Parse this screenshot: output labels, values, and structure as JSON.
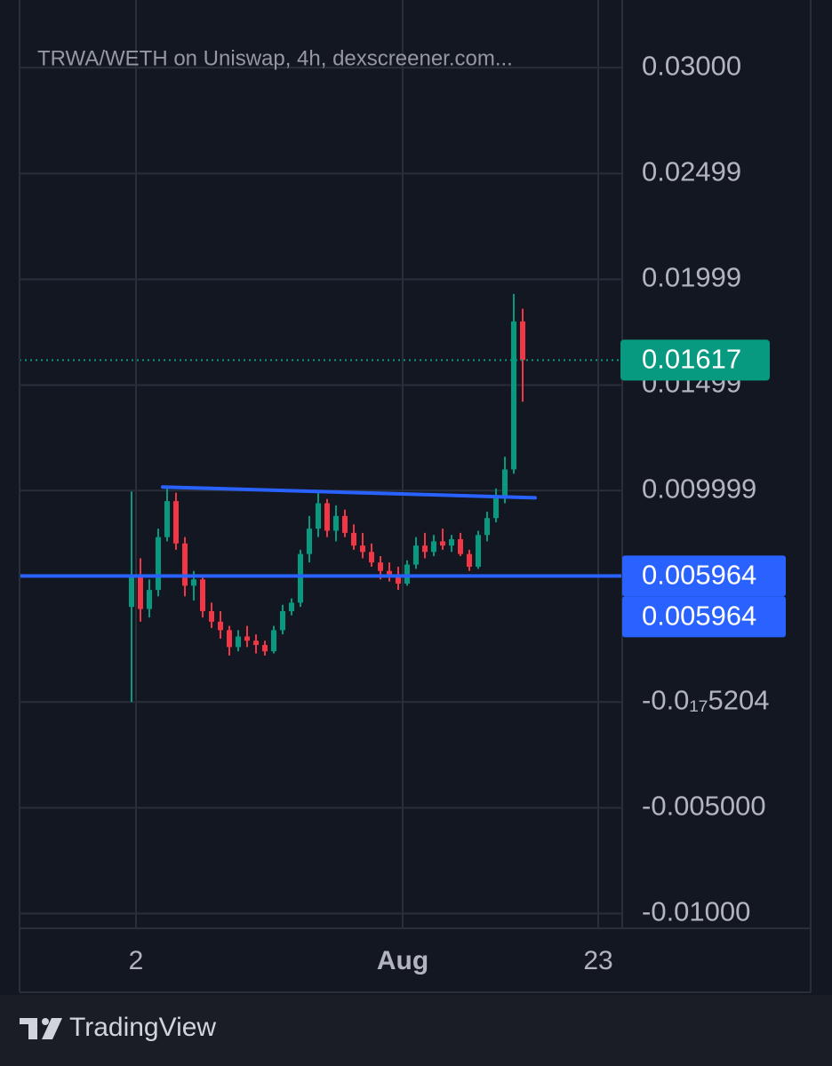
{
  "chart_data": {
    "type": "candlestick",
    "title": "TRWA/WETH on Uniswap, 4h, dexscreener.com...",
    "brand": "TradingView",
    "categories": [
      null,
      null,
      null,
      null,
      null,
      null,
      null,
      null,
      null,
      null,
      null,
      null,
      null,
      null,
      null,
      null,
      null,
      null,
      null,
      null,
      null,
      null,
      null,
      null,
      null,
      null,
      null,
      null,
      null,
      null,
      null,
      null,
      null,
      null,
      null,
      null,
      null,
      null,
      null,
      null,
      null,
      null,
      null,
      null,
      null
    ],
    "open": [
      0.0045,
      0.006,
      0.0044,
      0.0053,
      0.0078,
      0.0095,
      0.0075,
      0.0055,
      0.0058,
      0.0043,
      0.0038,
      0.0034,
      0.0026,
      0.0031,
      0.0029,
      0.0027,
      0.0024,
      0.0034,
      0.0043,
      0.0047,
      0.007,
      0.0082,
      0.0094,
      0.0081,
      0.0088,
      0.008,
      0.0074,
      0.0071,
      0.0066,
      0.0062,
      0.0059,
      0.0056,
      0.0065,
      0.0074,
      0.0071,
      0.0076,
      0.0074,
      0.0077,
      0.007,
      0.0064,
      0.0079,
      0.0087,
      0.0097,
      0.011,
      0.018
    ],
    "high": [
      0.00996,
      0.0068,
      0.0058,
      0.0082,
      0.0101,
      0.0099,
      0.0078,
      0.0062,
      0.006,
      0.0047,
      0.0043,
      0.0036,
      0.0034,
      0.0036,
      0.0032,
      0.0029,
      0.0036,
      0.0046,
      0.0049,
      0.0072,
      0.0088,
      0.0099,
      0.0096,
      0.0093,
      0.0091,
      0.0084,
      0.008,
      0.0075,
      0.0069,
      0.0066,
      0.0064,
      0.0067,
      0.0078,
      0.008,
      0.0079,
      0.0082,
      0.0079,
      0.008,
      0.0072,
      0.0081,
      0.009,
      0.0101,
      0.0116,
      0.0193,
      0.0186
    ],
    "low": [
      0.0,
      0.0038,
      0.004,
      0.005,
      0.0076,
      0.0072,
      0.005,
      0.0048,
      0.004,
      0.0035,
      0.003,
      0.0022,
      0.0024,
      0.0026,
      0.0023,
      0.0022,
      0.0023,
      0.0032,
      0.0041,
      0.0045,
      0.0066,
      0.0078,
      0.0078,
      0.0076,
      0.0078,
      0.0072,
      0.0068,
      0.0064,
      0.0058,
      0.0057,
      0.0053,
      0.0055,
      0.0063,
      0.0068,
      0.0069,
      0.0072,
      0.0071,
      0.0069,
      0.0062,
      0.0063,
      0.0076,
      0.0085,
      0.0094,
      0.0108,
      0.0142
    ],
    "close": [
      0.006,
      0.0044,
      0.0053,
      0.0078,
      0.0095,
      0.0075,
      0.0055,
      0.0058,
      0.0043,
      0.0038,
      0.0034,
      0.0026,
      0.0031,
      0.0029,
      0.0027,
      0.0024,
      0.0034,
      0.0043,
      0.0047,
      0.007,
      0.0082,
      0.0094,
      0.0081,
      0.0088,
      0.008,
      0.0074,
      0.0071,
      0.0066,
      0.0062,
      0.0059,
      0.0056,
      0.0065,
      0.0074,
      0.0071,
      0.0076,
      0.0074,
      0.0077,
      0.007,
      0.0064,
      0.0079,
      0.0087,
      0.0097,
      0.011,
      0.018,
      0.01617
    ],
    "up_color": "#089981",
    "down_color": "#f23645",
    "current_price": 0.01617,
    "horizontal_line": 0.005964,
    "trend_line": [
      0.01017,
      0.00966
    ],
    "line_color": "#2962ff",
    "xlim": [
      -12.6,
      55.2
    ],
    "xticks": [
      {
        "value": 0.5,
        "label": "2"
      },
      {
        "value": 30.5,
        "label": "Aug"
      },
      {
        "value": 52.5,
        "label": "23"
      }
    ],
    "ylim": [
      -0.0107,
      0.0332
    ],
    "yticks": [
      {
        "value": 0.03,
        "label": "0.03000"
      },
      0.02499,
      0.01999,
      0.01499,
      0.009999,
      {
        "value": -5.204e-18,
        "label": "-0.0₁₇5204"
      },
      {
        "value": -0.005,
        "label": "-0.005000"
      },
      {
        "value": -0.01,
        "label": "-0.01000"
      }
    ],
    "grid": true
  }
}
